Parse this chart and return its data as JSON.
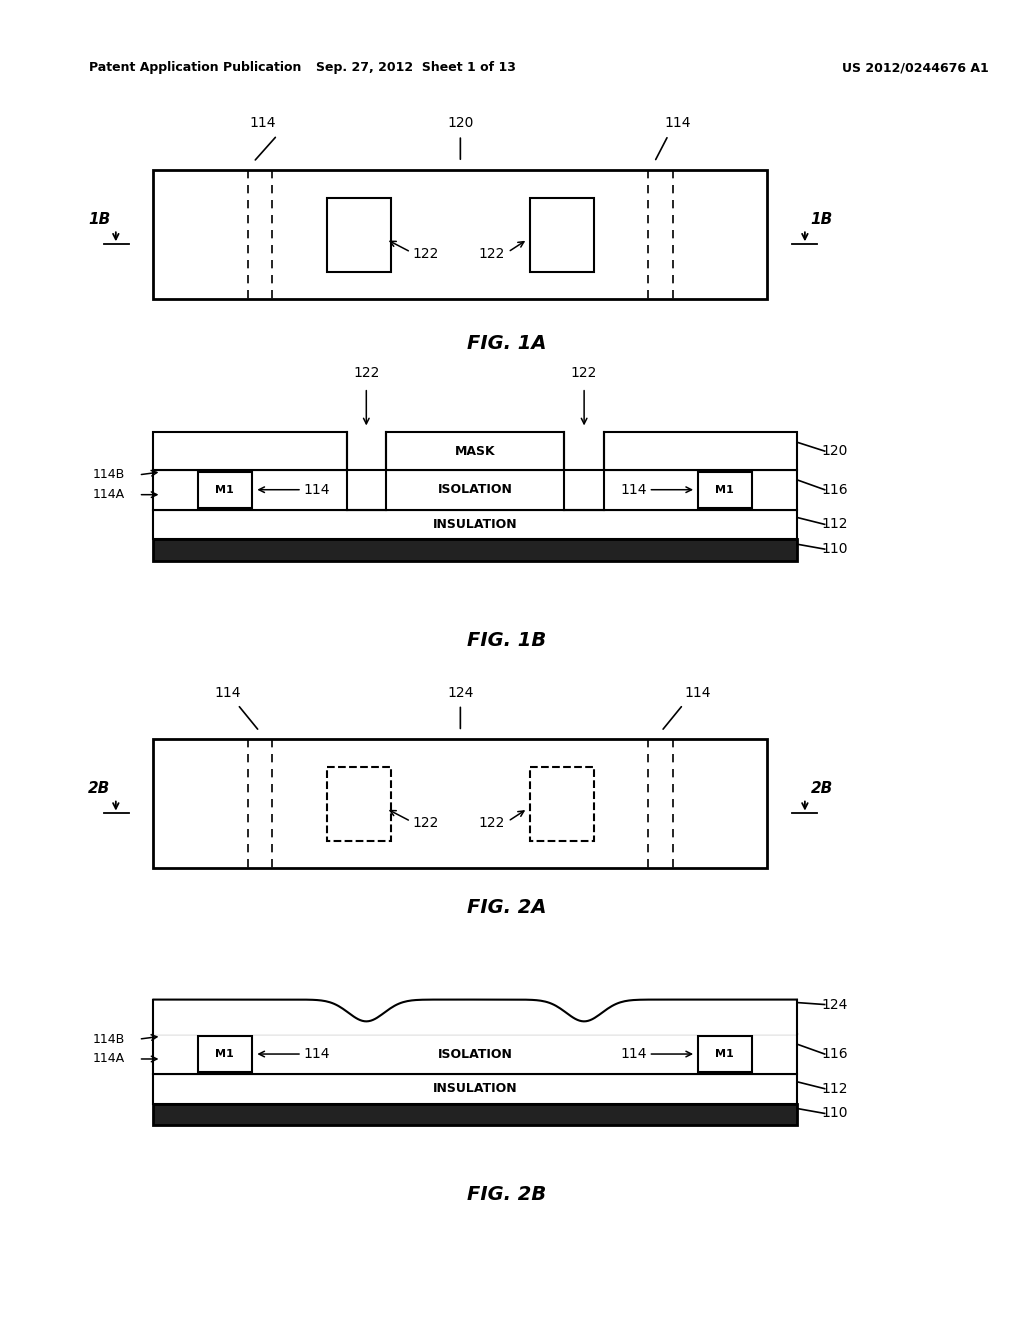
{
  "header_left": "Patent Application Publication",
  "header_mid": "Sep. 27, 2012  Sheet 1 of 13",
  "header_right": "US 2012/0244676 A1",
  "bg_color": "#ffffff",
  "line_color": "#000000",
  "fig1a_caption": "FIG. 1A",
  "fig1b_caption": "FIG. 1B",
  "fig2a_caption": "FIG. 2A",
  "fig2b_caption": "FIG. 2B"
}
